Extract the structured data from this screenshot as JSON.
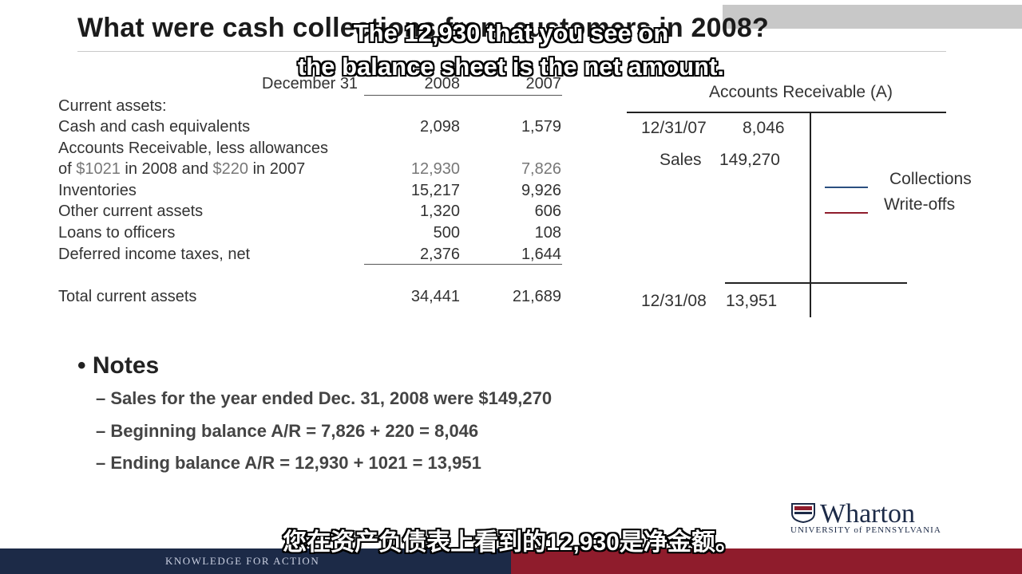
{
  "slide": {
    "title": "What were cash collections from customers in 2008?",
    "subtitle_lines": [
      "The 12,930 that you see on",
      "the balance sheet is the net amount."
    ],
    "subtitle_cn": "您在资产负债表上看到的12,930是净金额。"
  },
  "balance_sheet": {
    "header": {
      "label": "December 31",
      "col1": "2008",
      "col2": "2007"
    },
    "section": "Current assets:",
    "rows": [
      {
        "label": "Cash and cash equivalents",
        "v2008": "2,098",
        "v2007": "1,579"
      },
      {
        "label": "Accounts Receivable, less allowances",
        "v2008": "",
        "v2007": ""
      },
      {
        "label_prefix": "of ",
        "amt1": "$1021",
        "mid": " in 2008 and ",
        "amt2": "$220",
        "suffix": " in 2007",
        "v2008": "12,930",
        "v2007": "7,826"
      },
      {
        "label": "Inventories",
        "v2008": "15,217",
        "v2007": "9,926"
      },
      {
        "label": "Other current assets",
        "v2008": "1,320",
        "v2007": "606"
      },
      {
        "label": "Loans to officers",
        "v2008": "500",
        "v2007": "108"
      },
      {
        "label": "Deferred income taxes, net",
        "v2008": "2,376",
        "v2007": "1,644"
      }
    ],
    "total": {
      "label": "Total current assets",
      "v2008": "34,441",
      "v2007": "21,689"
    }
  },
  "t_account": {
    "title": "Accounts Receivable (A)",
    "beginning": {
      "date": "12/31/07",
      "amount": "8,046"
    },
    "sales": {
      "label": "Sales",
      "amount": "149,270"
    },
    "collections": "Collections",
    "writeoffs": "Write-offs",
    "ending": {
      "date": "12/31/08",
      "amount": "13,951"
    }
  },
  "notes": {
    "heading": "Notes",
    "items": [
      "– Sales for the year ended Dec. 31, 2008 were $149,270",
      "– Beginning balance A/R = 7,826 + 220 = 8,046",
      "– Ending balance A/R = 12,930 + 1021 = 13,951"
    ]
  },
  "footer": {
    "tagline": "KNOWLEDGE FOR ACTION",
    "logo_word": "Wharton",
    "logo_sub": "UNIVERSITY of PENNSYLVANIA"
  },
  "colors": {
    "navy": "#1c2a47",
    "crimson": "#8f1c2c",
    "collections_line": "#2b4f80",
    "writeoffs_line": "#8f1c2c"
  }
}
